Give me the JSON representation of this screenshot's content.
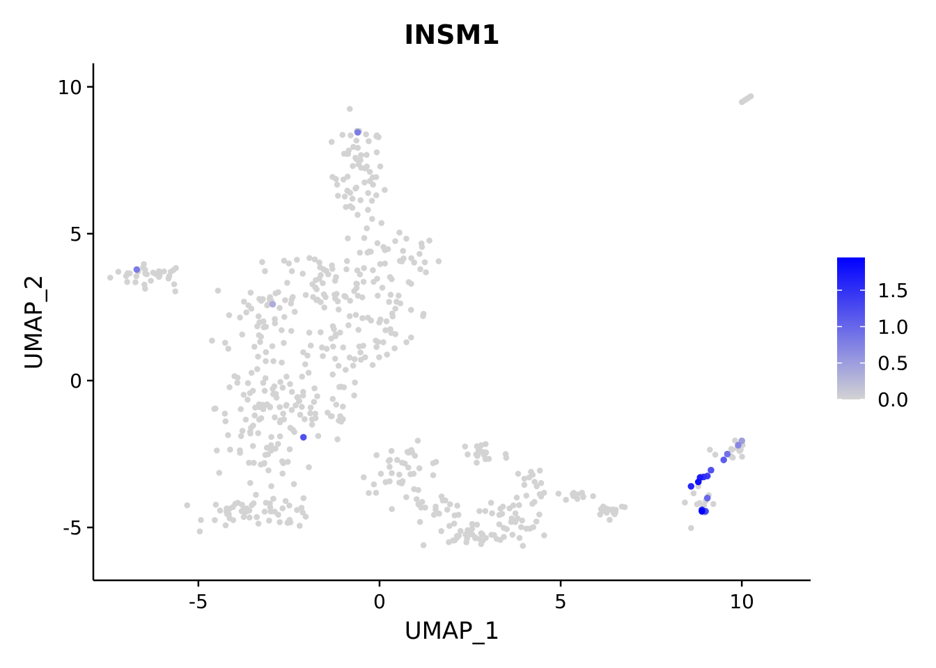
{
  "chart_data": {
    "type": "scatter",
    "title": "INSM1",
    "xlabel": "UMAP_1",
    "ylabel": "UMAP_2",
    "xlim": [
      -7.9,
      11.9
    ],
    "ylim": [
      -6.8,
      10.8
    ],
    "x_ticks": [
      -5,
      0,
      5,
      10
    ],
    "x_tick_labels": [
      "-5",
      "0",
      "5",
      "10"
    ],
    "y_ticks": [
      -5,
      0,
      5,
      10
    ],
    "y_tick_labels": [
      "-5",
      "0",
      "5",
      "10"
    ],
    "grid": false,
    "legend": {
      "position": "right",
      "type": "colorbar",
      "range": [
        0,
        1.95
      ],
      "ticks": [
        0.0,
        0.5,
        1.0,
        1.5
      ],
      "tick_labels": [
        "0.0",
        "0.5",
        "1.0",
        "1.5"
      ],
      "low_color": "#d3d3d3",
      "high_color": "#0000ff"
    },
    "background_color": "#d3d3d3",
    "background_clusters": [
      {
        "cx": -6.3,
        "cy": 3.6,
        "sx": 0.55,
        "sy": 0.18,
        "n": 30
      },
      {
        "cx": -0.6,
        "cy": 7.0,
        "sx": 0.35,
        "sy": 0.9,
        "n": 60
      },
      {
        "cx": 0.5,
        "cy": 4.2,
        "sx": 0.6,
        "sy": 0.6,
        "n": 35
      },
      {
        "cx": -1.6,
        "cy": 3.5,
        "sx": 0.9,
        "sy": 0.6,
        "n": 50
      },
      {
        "cx": -3.2,
        "cy": 2.0,
        "sx": 0.7,
        "sy": 0.9,
        "n": 55
      },
      {
        "cx": -0.7,
        "cy": 1.5,
        "sx": 0.6,
        "sy": 0.8,
        "n": 45
      },
      {
        "cx": 0.4,
        "cy": 2.2,
        "sx": 0.5,
        "sy": 0.5,
        "n": 25
      },
      {
        "cx": -3.3,
        "cy": -0.9,
        "sx": 0.6,
        "sy": 0.8,
        "n": 60
      },
      {
        "cx": -1.8,
        "cy": -1.0,
        "sx": 0.7,
        "sy": 0.6,
        "n": 40
      },
      {
        "cx": -3.1,
        "cy": -2.6,
        "sx": 0.5,
        "sy": 0.6,
        "n": 30
      },
      {
        "cx": -3.6,
        "cy": -4.5,
        "sx": 0.6,
        "sy": 0.25,
        "n": 40
      },
      {
        "cx": -2.5,
        "cy": -4.4,
        "sx": 0.3,
        "sy": 0.3,
        "n": 15
      },
      {
        "cx": 0.7,
        "cy": -3.0,
        "sx": 0.6,
        "sy": 0.4,
        "n": 35
      },
      {
        "cx": 1.5,
        "cy": -4.4,
        "sx": 0.5,
        "sy": 0.3,
        "n": 25
      },
      {
        "cx": 2.5,
        "cy": -5.3,
        "sx": 0.5,
        "sy": 0.12,
        "n": 30
      },
      {
        "cx": 3.6,
        "cy": -4.9,
        "sx": 0.5,
        "sy": 0.4,
        "n": 30
      },
      {
        "cx": 2.8,
        "cy": -2.5,
        "sx": 0.4,
        "sy": 0.3,
        "n": 20
      },
      {
        "cx": 4.3,
        "cy": -3.6,
        "sx": 0.3,
        "sy": 0.4,
        "n": 18
      },
      {
        "cx": 5.5,
        "cy": -3.9,
        "sx": 0.25,
        "sy": 0.1,
        "n": 10
      },
      {
        "cx": 6.4,
        "cy": -4.4,
        "sx": 0.25,
        "sy": 0.12,
        "n": 16
      },
      {
        "cx": 8.9,
        "cy": -4.2,
        "sx": 0.25,
        "sy": 0.5,
        "n": 14
      },
      {
        "cx": 9.7,
        "cy": -2.4,
        "sx": 0.2,
        "sy": 0.2,
        "n": 12
      }
    ],
    "background_extra_points": [
      [
        10.0,
        9.48
      ],
      [
        10.05,
        9.52
      ],
      [
        10.1,
        9.56
      ],
      [
        10.15,
        9.6
      ],
      [
        10.2,
        9.64
      ],
      [
        10.25,
        9.68
      ]
    ],
    "expressing_points": [
      {
        "x": -0.6,
        "y": 8.45,
        "value": 0.8
      },
      {
        "x": -6.7,
        "y": 3.78,
        "value": 0.8
      },
      {
        "x": -2.95,
        "y": 2.6,
        "value": 0.35
      },
      {
        "x": -2.1,
        "y": -1.93,
        "value": 1.2
      },
      {
        "x": 8.6,
        "y": -3.6,
        "value": 1.6
      },
      {
        "x": 8.8,
        "y": -3.45,
        "value": 1.8
      },
      {
        "x": 8.85,
        "y": -3.3,
        "value": 1.7
      },
      {
        "x": 8.95,
        "y": -3.28,
        "value": 1.5
      },
      {
        "x": 9.05,
        "y": -3.25,
        "value": 1.4
      },
      {
        "x": 9.15,
        "y": -3.05,
        "value": 1.2
      },
      {
        "x": 9.5,
        "y": -2.7,
        "value": 1.1
      },
      {
        "x": 9.6,
        "y": -2.5,
        "value": 0.9
      },
      {
        "x": 9.9,
        "y": -2.2,
        "value": 0.7
      },
      {
        "x": 10.0,
        "y": -2.05,
        "value": 0.5
      },
      {
        "x": 9.05,
        "y": -4.0,
        "value": 1.0
      },
      {
        "x": 8.9,
        "y": -4.4,
        "value": 1.6
      },
      {
        "x": 8.9,
        "y": -4.45,
        "value": 1.95
      },
      {
        "x": 9.0,
        "y": -4.45,
        "value": 1.3
      }
    ]
  }
}
